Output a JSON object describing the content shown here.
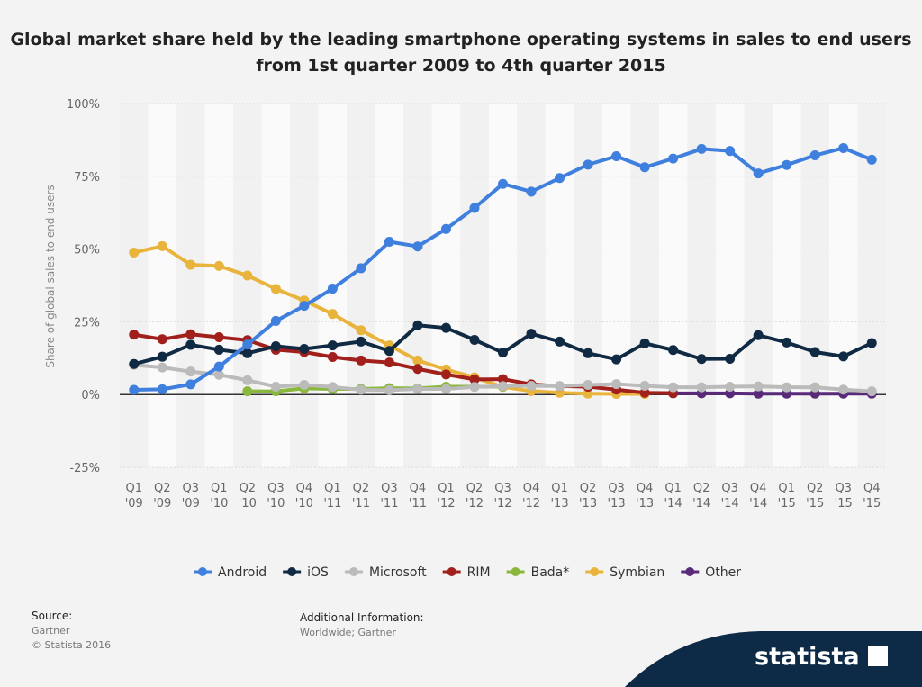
{
  "title": "Global market share held by the leading smartphone operating systems in sales to end users from 1st quarter 2009 to 4th quarter 2015",
  "chart_data": {
    "type": "line",
    "ylabel": "Share of global sales to end users",
    "ylim": [
      -25,
      100
    ],
    "yticks": [
      "100%",
      "75%",
      "50%",
      "25%",
      "0%",
      "-25%"
    ],
    "ytick_values": [
      100,
      75,
      50,
      25,
      0,
      -25
    ],
    "categories": [
      "Q1 '09",
      "Q2 '09",
      "Q3 '09",
      "Q1 '10",
      "Q2 '10",
      "Q3 '10",
      "Q4 '10",
      "Q1 '11",
      "Q2 '11",
      "Q3 '11",
      "Q4 '11",
      "Q1 '12",
      "Q2 '12",
      "Q3 '12",
      "Q4 '12",
      "Q1 '13",
      "Q2 '13",
      "Q3 '13",
      "Q4 '13",
      "Q1 '14",
      "Q2 '14",
      "Q3 '14",
      "Q4 '14",
      "Q1 '15",
      "Q2 '15",
      "Q3 '15",
      "Q4 '15"
    ],
    "grid": true,
    "legend": "bottom",
    "series": [
      {
        "name": "Android",
        "color": "#3f7fde",
        "values": [
          1.6,
          1.8,
          3.5,
          9.6,
          17.2,
          25.3,
          30.5,
          36.4,
          43.4,
          52.5,
          50.9,
          56.9,
          64.1,
          72.4,
          69.7,
          74.4,
          79.0,
          81.9,
          78.1,
          81.1,
          84.4,
          83.7,
          76.0,
          78.9,
          82.2,
          84.7,
          80.7
        ]
      },
      {
        "name": "iOS",
        "color": "#0f2a42",
        "values": [
          10.5,
          13.0,
          17.1,
          15.4,
          14.2,
          16.6,
          15.7,
          16.9,
          18.2,
          15.0,
          23.8,
          22.9,
          18.8,
          14.4,
          20.9,
          18.2,
          14.2,
          12.1,
          17.6,
          15.3,
          12.2,
          12.3,
          20.4,
          17.9,
          14.6,
          13.1,
          17.7
        ]
      },
      {
        "name": "Microsoft",
        "color": "#bbbbbb",
        "values": [
          10.2,
          9.3,
          7.9,
          6.8,
          4.9,
          2.7,
          3.3,
          2.6,
          1.6,
          1.5,
          1.9,
          1.9,
          2.6,
          2.9,
          3.0,
          2.9,
          3.3,
          3.6,
          3.0,
          2.5,
          2.5,
          2.7,
          2.8,
          2.5,
          2.5,
          1.7,
          1.1
        ]
      },
      {
        "name": "RIM",
        "color": "#a1201c",
        "values": [
          20.6,
          19.0,
          20.7,
          19.7,
          18.7,
          15.4,
          14.6,
          12.9,
          11.7,
          11.0,
          8.8,
          6.9,
          5.2,
          5.3,
          3.5,
          2.9,
          2.7,
          1.7,
          0.6,
          0.5,
          null,
          null,
          null,
          null,
          null,
          null,
          null
        ]
      },
      {
        "name": "Bada*",
        "color": "#8ab83c",
        "values": [
          null,
          null,
          null,
          null,
          1.1,
          1.1,
          2.1,
          1.9,
          1.9,
          2.2,
          2.1,
          2.7,
          2.7,
          2.7,
          null,
          null,
          null,
          null,
          null,
          null,
          null,
          null,
          null,
          null,
          null,
          null,
          null
        ]
      },
      {
        "name": "Symbian",
        "color": "#e8b43c",
        "values": [
          48.8,
          51.0,
          44.6,
          44.2,
          40.9,
          36.3,
          32.3,
          27.7,
          22.1,
          16.9,
          11.7,
          8.6,
          5.9,
          2.6,
          1.2,
          0.6,
          0.3,
          0.2,
          0.2,
          null,
          null,
          null,
          null,
          null,
          null,
          null,
          null
        ]
      },
      {
        "name": "Other",
        "color": "#5a2a7a",
        "values": [
          null,
          null,
          null,
          null,
          null,
          null,
          null,
          null,
          null,
          null,
          null,
          null,
          null,
          null,
          null,
          null,
          null,
          null,
          null,
          0.4,
          0.4,
          0.4,
          0.3,
          0.3,
          0.3,
          0.3,
          0.3
        ]
      }
    ]
  },
  "footer": {
    "source_label": "Source:",
    "source": "Gartner",
    "copyright": "© Statista 2016",
    "additional_label": "Additional Information:",
    "additional": "Worldwide; Gartner",
    "logo": "statista"
  }
}
